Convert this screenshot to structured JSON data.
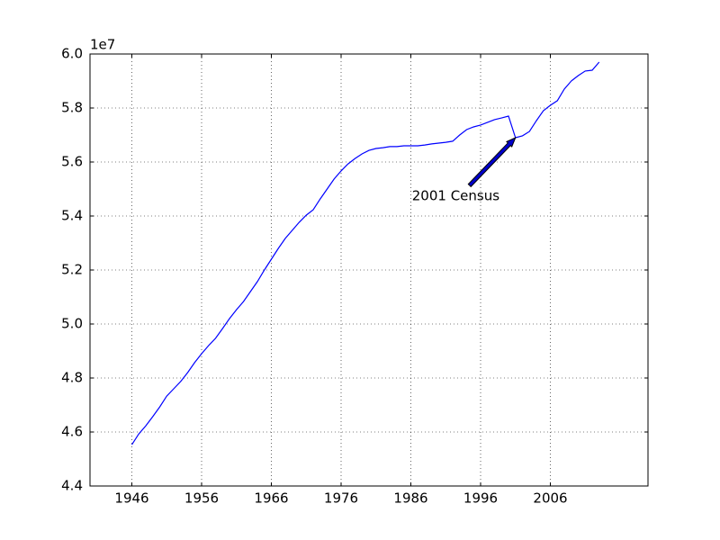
{
  "chart_data": {
    "type": "line",
    "y_offset_label": "1e7",
    "x": [
      1946,
      1947,
      1948,
      1949,
      1950,
      1951,
      1952,
      1953,
      1954,
      1955,
      1956,
      1957,
      1958,
      1959,
      1960,
      1961,
      1962,
      1963,
      1964,
      1965,
      1966,
      1967,
      1968,
      1969,
      1970,
      1971,
      1972,
      1973,
      1974,
      1975,
      1976,
      1977,
      1978,
      1979,
      1980,
      1981,
      1982,
      1983,
      1984,
      1985,
      1986,
      1987,
      1988,
      1989,
      1990,
      1991,
      1992,
      1993,
      1994,
      1995,
      1996,
      1997,
      1998,
      1999,
      2000,
      2001,
      2002,
      2003,
      2004,
      2005,
      2006,
      2007,
      2008,
      2009,
      2010,
      2011,
      2012,
      2013
    ],
    "series": [
      {
        "color": "#0000ff",
        "values": [
          4.553,
          4.593,
          4.623,
          4.657,
          4.693,
          4.733,
          4.76,
          4.787,
          4.82,
          4.857,
          4.89,
          4.92,
          4.947,
          4.983,
          5.02,
          5.053,
          5.083,
          5.12,
          5.157,
          5.2,
          5.24,
          5.28,
          5.317,
          5.347,
          5.377,
          5.403,
          5.423,
          5.463,
          5.5,
          5.537,
          5.567,
          5.593,
          5.613,
          5.63,
          5.643,
          5.65,
          5.653,
          5.657,
          5.657,
          5.66,
          5.66,
          5.66,
          5.663,
          5.667,
          5.67,
          5.673,
          5.677,
          5.7,
          5.72,
          5.73,
          5.737,
          5.747,
          5.757,
          5.763,
          5.77,
          5.69,
          5.697,
          5.713,
          5.753,
          5.79,
          5.81,
          5.827,
          5.87,
          5.9,
          5.92,
          5.937,
          5.94,
          5.97
        ]
      }
    ],
    "annotation": {
      "text": "2001 Census",
      "x": 2001
    },
    "xlim": [
      1940,
      2020
    ],
    "xticks": [
      1946,
      1956,
      1966,
      1976,
      1986,
      1996,
      2006
    ],
    "ylim": [
      4.4,
      6.0
    ],
    "yticks": [
      {
        "value": 4.4,
        "label": "4.4"
      },
      {
        "value": 4.6,
        "label": "4.6"
      },
      {
        "value": 4.8,
        "label": "4.8"
      },
      {
        "value": 5.0,
        "label": "5.0"
      },
      {
        "value": 5.2,
        "label": "5.2"
      },
      {
        "value": 5.4,
        "label": "5.4"
      },
      {
        "value": 5.6,
        "label": "5.6"
      },
      {
        "value": 5.8,
        "label": "5.8"
      },
      {
        "value": 6.0,
        "label": "6.0"
      }
    ],
    "grid": true
  }
}
